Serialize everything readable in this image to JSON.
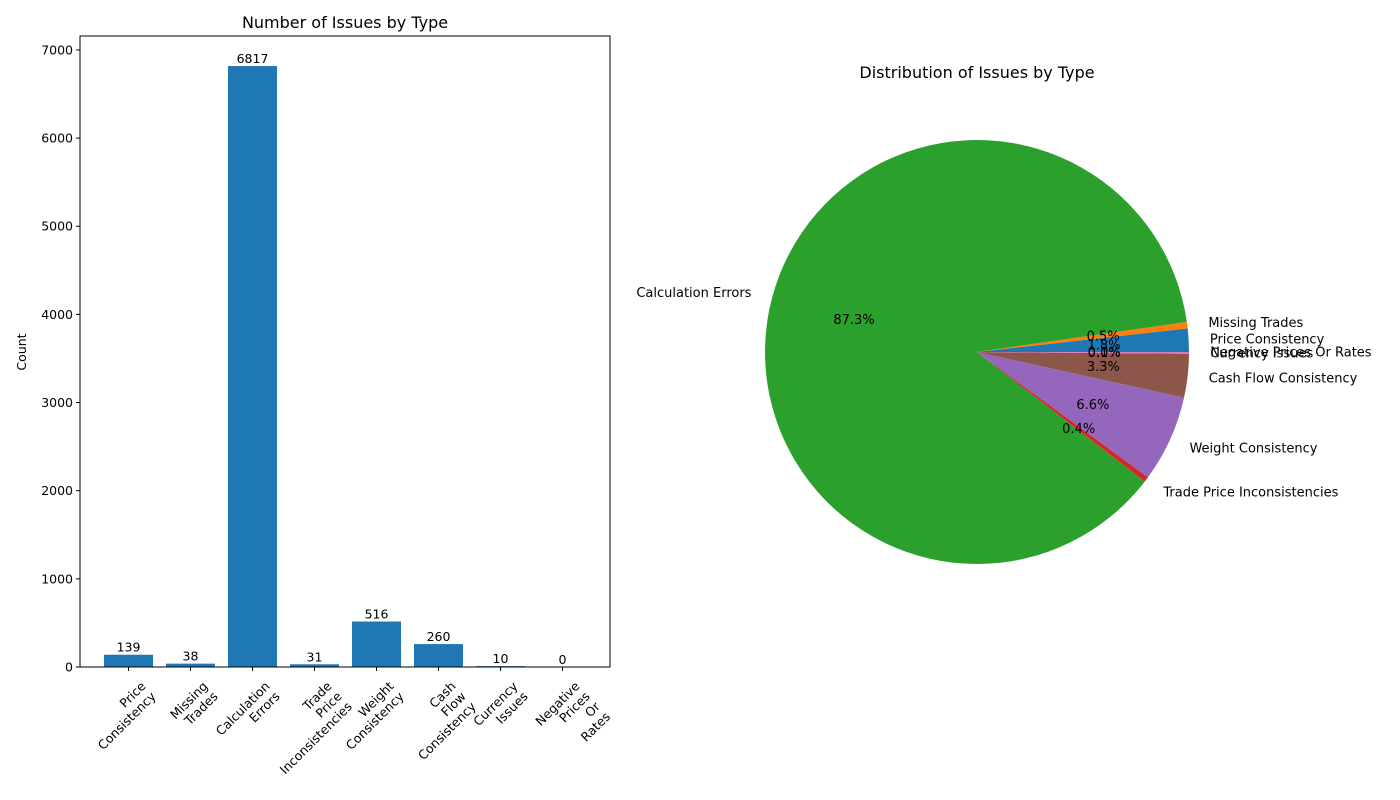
{
  "chart_data": [
    {
      "type": "bar",
      "title": "Number of Issues by Type",
      "xlabel": "",
      "ylabel": "Count",
      "ylim": [
        0,
        7158
      ],
      "yticks": [
        0,
        1000,
        2000,
        3000,
        4000,
        5000,
        6000,
        7000
      ],
      "color": "#1f77b4",
      "categories": [
        "Price\nConsistency",
        "Missing\nTrades",
        "Calculation\nErrors",
        "Trade\nPrice\nInconsistencies",
        "Weight\nConsistency",
        "Cash\nFlow\nConsistency",
        "Currency\nIssues",
        "Negative\nPrices\nOr\nRates"
      ],
      "values": [
        139,
        38,
        6817,
        31,
        516,
        260,
        10,
        0
      ],
      "data_labels": [
        "139",
        "38",
        "6817",
        "31",
        "516",
        "260",
        "10",
        "0"
      ],
      "grid": false
    },
    {
      "type": "pie",
      "title": "Distribution of Issues by Type",
      "slices": [
        {
          "label": "Price Consistency",
          "value": 139,
          "pct": "1.8%",
          "color": "#1f77b4"
        },
        {
          "label": "Missing Trades",
          "value": 38,
          "pct": "0.5%",
          "color": "#ff7f0e"
        },
        {
          "label": "Calculation Errors",
          "value": 6817,
          "pct": "87.3%",
          "color": "#2ca02c"
        },
        {
          "label": "Trade Price Inconsistencies",
          "value": 31,
          "pct": "0.4%",
          "color": "#d62728"
        },
        {
          "label": "Weight Consistency",
          "value": 516,
          "pct": "6.6%",
          "color": "#9467bd"
        },
        {
          "label": "Cash Flow Consistency",
          "value": 260,
          "pct": "3.3%",
          "color": "#8c564b"
        },
        {
          "label": "Currency Issues",
          "value": 10,
          "pct": "0.1%",
          "color": "#e377c2"
        },
        {
          "label": "Negative Prices Or Rates",
          "value": 0,
          "pct": "0.0%",
          "color": "#7f7f7f"
        }
      ],
      "start_angle_deg": 0,
      "direction": "counterclockwise"
    }
  ]
}
